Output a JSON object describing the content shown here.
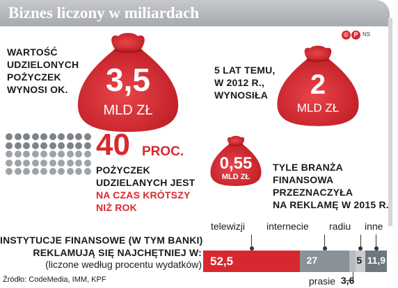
{
  "header": {
    "title": "Biznes liczony w miliardach"
  },
  "brand": {
    "mark1": "©",
    "mark2": "P",
    "initials": "NS"
  },
  "loans": {
    "text_lines": [
      "WARTOŚĆ",
      "UDZIELONYCH",
      "POŻYCZEK",
      "WYNOSI OK."
    ],
    "value": "3,5",
    "unit": "MLD ZŁ"
  },
  "past": {
    "text_lines": [
      "5 LAT TEMU,",
      "W 2012 R.,",
      "WYNOSIŁA"
    ],
    "value": "2",
    "unit": "MLD ZŁ"
  },
  "share": {
    "value": "40",
    "unit": "PROC.",
    "text_lines": [
      "POŻYCZEK",
      "UDZIELANYCH JEST"
    ],
    "highlight_lines": [
      "NA CZAS KRÓTSZY",
      "NIŻ ROK"
    ],
    "dots_total": 50,
    "dots_highlighted": 20
  },
  "ads": {
    "value": "0,55",
    "unit": "MLD ZŁ",
    "text_lines": [
      "TYLE BRANŻA",
      "FINANSOWA",
      "PRZEZNACZYŁA",
      "NA REKLAMĘ W 2015 R."
    ]
  },
  "institutions": {
    "lines": [
      "INSTYTUCJE FINANSOWE (W TYM BANKI)",
      "REKLAMUJĄ SIĘ NAJCHĘTNIEJ W:"
    ],
    "note": "(liczone według procentu wydatków)"
  },
  "chart_data": {
    "type": "bar",
    "stacked": true,
    "categories": [
      "telewizji",
      "internecie",
      "prasie",
      "radiu",
      "inne"
    ],
    "values": [
      52.5,
      27,
      3.6,
      5,
      11.9
    ],
    "value_labels": [
      "52,5",
      "27",
      "3,6",
      "5",
      "11,9"
    ],
    "colors": [
      "#d8282f",
      "#8a9199",
      "#b7bcc1",
      "#c9cdd1",
      "#6f767d"
    ]
  },
  "colors": {
    "accent": "#d8282f",
    "grey": "#9ea3a8"
  },
  "source": "Źródło: CodeMedia, IMM, KPF"
}
